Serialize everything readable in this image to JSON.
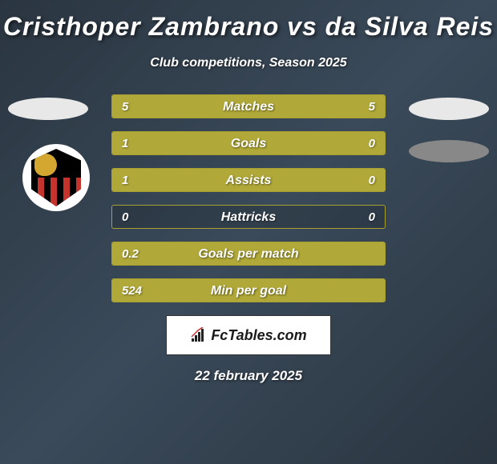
{
  "title": "Cristhoper Zambrano vs da Silva Reis",
  "subtitle": "Club competitions, Season 2025",
  "date": "22 february 2025",
  "footer": {
    "label": "FcTables.com"
  },
  "colors": {
    "bar_fill": "#b0a838",
    "bar_border": "#a8a030",
    "background_gradient_start": "#2a3540",
    "background_gradient_mid": "#3a4a5a",
    "text": "#ffffff"
  },
  "stats": [
    {
      "label": "Matches",
      "left_value": "5",
      "right_value": "5",
      "left_pct": 50,
      "right_pct": 50
    },
    {
      "label": "Goals",
      "left_value": "1",
      "right_value": "0",
      "left_pct": 78,
      "right_pct": 22
    },
    {
      "label": "Assists",
      "left_value": "1",
      "right_value": "0",
      "left_pct": 78,
      "right_pct": 22
    },
    {
      "label": "Hattricks",
      "left_value": "0",
      "right_value": "0",
      "left_pct": 0,
      "right_pct": 0
    },
    {
      "label": "Goals per match",
      "left_value": "0.2",
      "right_value": "",
      "left_pct": 100,
      "right_pct": 0
    },
    {
      "label": "Min per goal",
      "left_value": "524",
      "right_value": "",
      "left_pct": 100,
      "right_pct": 0
    }
  ]
}
